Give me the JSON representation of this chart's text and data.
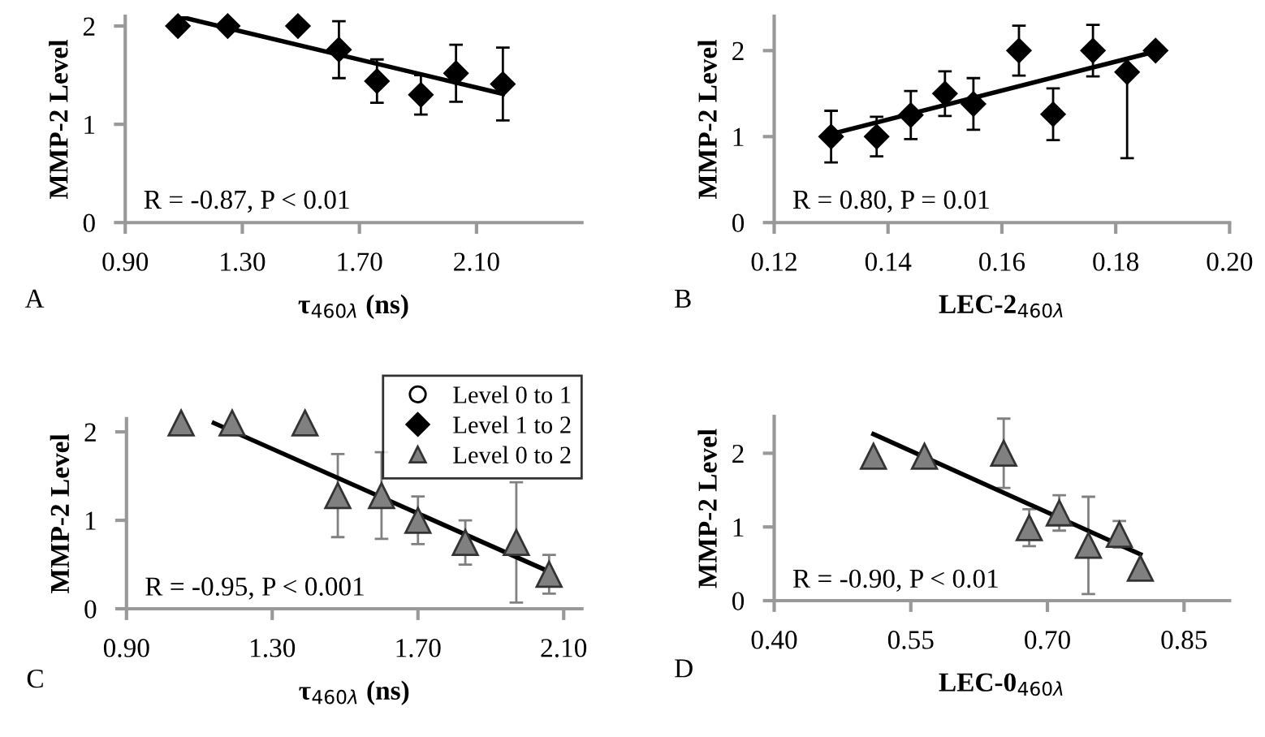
{
  "chart_data": [
    {
      "type": "scatter",
      "xlabel": "τ$_{460λ}$ (ns)",
      "ylabel": "MMP-2 Level",
      "xlim": [
        0.9,
        2.46
      ],
      "xticks": [
        {
          "value": 0.9,
          "label": "0.90"
        },
        {
          "value": 1.3,
          "label": "1.30"
        },
        {
          "value": 1.7,
          "label": "1.70"
        },
        {
          "value": 2.1,
          "label": "2.10"
        }
      ],
      "ylim": [
        0,
        2.1
      ],
      "yticks": [
        0,
        1,
        2
      ],
      "grid": false,
      "legend": "bottom right",
      "annotations": [
        "A",
        "R = -0.87, P < 0.01"
      ],
      "series": [
        {
          "name": "Level 0 to 1",
          "marker": "circle",
          "color": "#ffffff"
        },
        {
          "name": "Level 1 to 2",
          "marker": "diamond",
          "color": "#000000",
          "x": [
            1.08,
            1.25,
            1.49,
            1.63,
            1.76,
            1.91,
            2.03,
            2.19
          ],
          "values": [
            2.0,
            2.0,
            2.0,
            1.76,
            1.44,
            1.3,
            1.52,
            1.41
          ],
          "errors": [
            null,
            null,
            null,
            0.29,
            0.22,
            0.2,
            0.29,
            0.37
          ]
        },
        {
          "type": "line",
          "color": "#000000",
          "x": [
            1.08,
            2.19
          ],
          "values": [
            2.1,
            1.31
          ]
        }
      ]
    },
    {
      "type": "scatter",
      "xlabel": "LEC-2$_{460λ}$",
      "ylabel": "MMP-2 Level",
      "xlim": [
        0.12,
        0.2
      ],
      "xticks": [
        {
          "value": 0.12,
          "label": "0.12"
        },
        {
          "value": 0.14,
          "label": "0.14"
        },
        {
          "value": 0.16,
          "label": "0.16"
        },
        {
          "value": 0.18,
          "label": "0.18"
        },
        {
          "value": 0.2,
          "label": "0.20"
        }
      ],
      "ylim": [
        0,
        2.4
      ],
      "yticks": [
        0,
        1,
        2
      ],
      "grid": false,
      "annotations": [
        "B",
        "R = 0.80, P = 0.01"
      ],
      "series": [
        {
          "marker": "diamond",
          "color": "#000000",
          "x": [
            0.13,
            0.138,
            0.144,
            0.15,
            0.155,
            0.163,
            0.169,
            0.176,
            0.182,
            0.187
          ],
          "values": [
            1.0,
            1.0,
            1.25,
            1.5,
            1.38,
            2.0,
            1.26,
            2.0,
            1.75,
            2.0
          ],
          "errors": [
            0.3,
            0.23,
            0.28,
            0.26,
            0.3,
            0.29,
            0.3,
            0.3,
            [
              0.75,
              1.75
            ],
            null
          ]
        },
        {
          "type": "line",
          "color": "#000000",
          "x": [
            0.13,
            0.187
          ],
          "values": [
            1.03,
            1.99
          ]
        }
      ]
    },
    {
      "type": "scatter",
      "xlabel": "τ$_{460λ}$ (ns)",
      "ylabel": "MMP-2 Level",
      "xlim": [
        0.9,
        2.15
      ],
      "xticks": [
        {
          "value": 0.9,
          "label": "0.90"
        },
        {
          "value": 1.3,
          "label": "1.30"
        },
        {
          "value": 1.7,
          "label": "1.70"
        },
        {
          "value": 2.1,
          "label": "2.10"
        }
      ],
      "ylim": [
        0,
        2.15
      ],
      "yticks": [
        0,
        1,
        2
      ],
      "grid": false,
      "annotations": [
        "C",
        "R = -0.95, P < 0.001"
      ],
      "series": [
        {
          "name": "Level 0 to 2",
          "marker": "triangle",
          "color": "#808080",
          "x": [
            1.05,
            1.19,
            1.39,
            1.48,
            1.6,
            1.7,
            1.83,
            1.97,
            2.06
          ],
          "values": [
            2.1,
            2.1,
            2.1,
            1.28,
            1.28,
            1.0,
            0.75,
            0.75,
            0.39
          ],
          "errors": [
            null,
            null,
            null,
            0.47,
            0.49,
            0.27,
            0.25,
            0.68,
            0.22
          ]
        },
        {
          "type": "line",
          "color": "#000000",
          "x": [
            1.14,
            2.06
          ],
          "values": [
            2.1,
            0.42
          ]
        }
      ]
    },
    {
      "type": "scatter",
      "xlabel": "LEC-0$_{460λ}$",
      "ylabel": "MMP-2 Level",
      "xlim": [
        0.4,
        0.9
      ],
      "xticks": [
        {
          "value": 0.4,
          "label": "0.40"
        },
        {
          "value": 0.55,
          "label": "0.55"
        },
        {
          "value": 0.7,
          "label": "0.70"
        },
        {
          "value": 0.85,
          "label": "0.85"
        }
      ],
      "ylim": [
        0,
        2.5
      ],
      "yticks": [
        0,
        1,
        2
      ],
      "grid": false,
      "annotations": [
        "D",
        "R = -0.90, P < 0.01"
      ],
      "series": [
        {
          "marker": "triangle",
          "color": "#808080",
          "x": [
            0.509,
            0.565,
            0.652,
            0.68,
            0.713,
            0.745,
            0.779,
            0.802
          ],
          "values": [
            1.96,
            1.96,
            2.0,
            0.99,
            1.19,
            0.75,
            0.9,
            0.44
          ],
          "errors": [
            null,
            null,
            0.47,
            0.25,
            0.24,
            0.66,
            0.18,
            null
          ]
        },
        {
          "type": "line",
          "color": "#000000",
          "x": [
            0.509,
            0.802
          ],
          "values": [
            2.26,
            0.63
          ]
        }
      ]
    }
  ]
}
